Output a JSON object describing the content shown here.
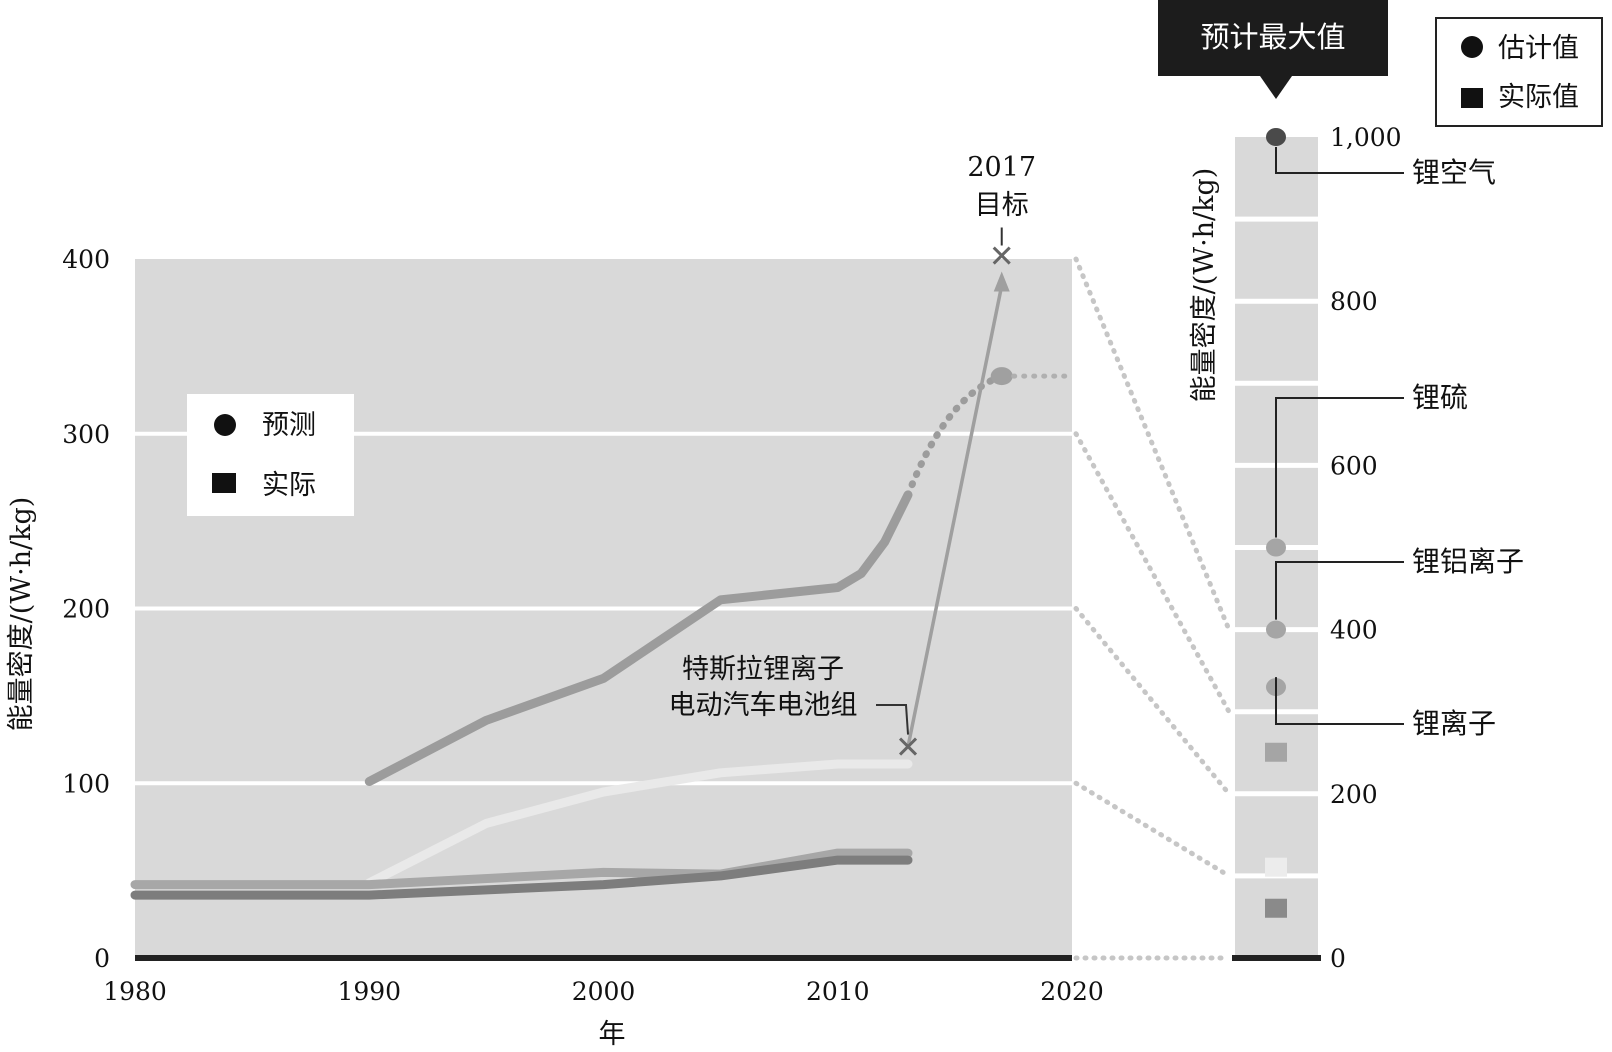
{
  "chart_data": [
    {
      "type": "line",
      "xlabel": "年",
      "ylabel": "能量密度/(W·h/kg)",
      "xlim": [
        1980,
        2020
      ],
      "ylim": [
        0,
        400
      ],
      "x_ticks": [
        "1980",
        "1990",
        "2000",
        "2010",
        "2020"
      ],
      "y_ticks": [
        "0",
        "100",
        "200",
        "300",
        "400"
      ],
      "grid": true,
      "legend": {
        "placement": "top-left",
        "items": [
          {
            "marker": "circle",
            "label": "预测"
          },
          {
            "marker": "square",
            "label": "实际"
          }
        ]
      },
      "series": [
        {
          "shade": "#9c9c9c",
          "x": [
            1990,
            1995,
            2000,
            2005,
            2010,
            2011,
            2012,
            2013
          ],
          "y": [
            101,
            136,
            160,
            205,
            212,
            220,
            238,
            265
          ]
        },
        {
          "shade": "#e9e9e9",
          "x": [
            1990,
            1995,
            2000,
            2005,
            2010,
            2013
          ],
          "y": [
            43,
            77,
            95,
            106,
            111,
            111
          ]
        },
        {
          "shade": "#a7a7a7",
          "x": [
            1980,
            1990,
            2000,
            2005,
            2010,
            2013
          ],
          "y": [
            42,
            42,
            49,
            48,
            60,
            60
          ]
        },
        {
          "shade": "#7d7d7d",
          "x": [
            1980,
            1990,
            2000,
            2005,
            2010,
            2013
          ],
          "y": [
            36,
            36,
            42,
            47,
            56,
            56
          ]
        }
      ],
      "projection": {
        "x": [
          2013,
          2017
        ],
        "y": [
          265,
          333
        ]
      },
      "annotations": {
        "tesla": {
          "x": 2013,
          "y": 121,
          "line1": "特斯拉锂离子",
          "line2": "电动汽车电池组"
        },
        "target": {
          "x": 2017,
          "y": 402,
          "line1": "2017",
          "line2": "目标"
        }
      }
    },
    {
      "type": "scatter",
      "header": "预计最大值",
      "ylabel": "能量密度/(W·h/kg)",
      "ylim": [
        0,
        1000
      ],
      "y_ticks": [
        "0",
        "200",
        "400",
        "600",
        "800",
        "1,000"
      ],
      "legend": {
        "placement": "top-right",
        "items": [
          {
            "marker": "circle",
            "label": "估计值"
          },
          {
            "marker": "square",
            "label": "实际值"
          }
        ]
      },
      "estimated": [
        {
          "label": "锂空气",
          "value": 1000,
          "shade": "#4a4a4a"
        },
        {
          "label": "锂硫",
          "value": 500,
          "shade": "#a5a5a5"
        },
        {
          "label": "锂铝离子",
          "value": 400,
          "shade": "#a5a5a5"
        },
        {
          "label": "锂离子",
          "value": 330,
          "shade": "#a5a5a5"
        }
      ],
      "actual": [
        {
          "value": 250,
          "shade": "#a5a5a5"
        },
        {
          "value": 110,
          "shade": "#ececec"
        },
        {
          "value": 60,
          "shade": "#8a8a8a"
        }
      ]
    }
  ]
}
